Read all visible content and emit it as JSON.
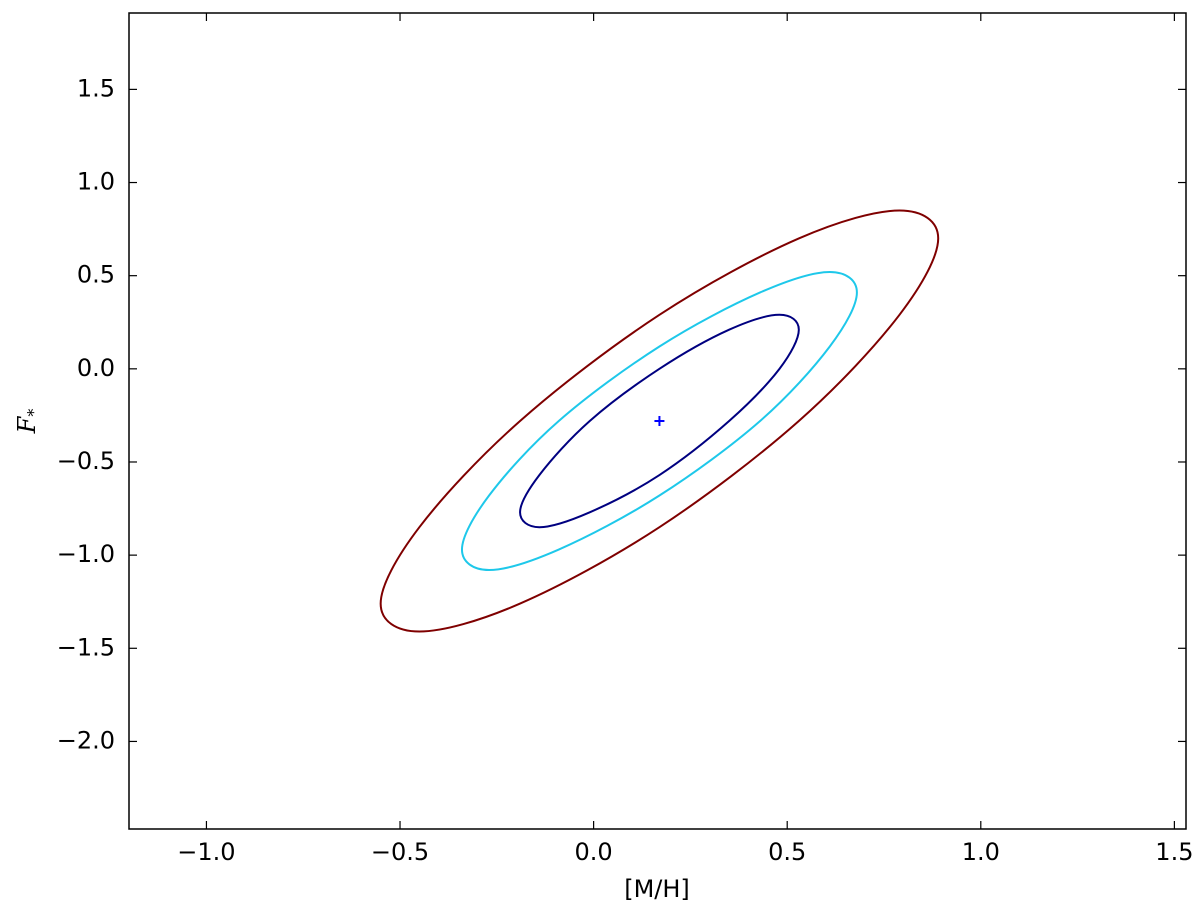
{
  "chart_data": {
    "type": "contour",
    "xlabel": "[M/H]",
    "ylabel": "F",
    "ylabel_subscript": "*",
    "xlim": [
      -1.2,
      1.53
    ],
    "ylim": [
      -2.47,
      1.91
    ],
    "xticks": [
      {
        "value": -1.0,
        "label": "−1.0"
      },
      {
        "value": -0.5,
        "label": "−0.5"
      },
      {
        "value": 0,
        "label": "0.0"
      },
      0.5,
      {
        "value": 1.0,
        "label": "1.0"
      },
      1.5
    ],
    "yticks": [
      1.5,
      {
        "value": 1.0,
        "label": "1.0"
      },
      0.5,
      {
        "value": 0,
        "label": "0.0"
      },
      {
        "value": -0.5,
        "label": "−0.5"
      },
      {
        "value": -1.0,
        "label": "−1.0"
      },
      {
        "value": -1.5,
        "label": "−1.5"
      },
      {
        "value": -2.0,
        "label": "−2.0"
      }
    ],
    "series": [
      {
        "color": "#7f0000",
        "x": [
          0.89,
          0.79,
          0.53,
          0.17,
          -0.19,
          -0.45,
          -0.55,
          -0.45,
          -0.19,
          0.17,
          0.53,
          0.79
        ],
        "y": [
          0.7,
          0.85,
          0.7,
          0.29,
          -0.28,
          -0.85,
          -1.26,
          -1.41,
          -1.26,
          -0.85,
          -0.28,
          0.29
        ]
      },
      {
        "color": "#1ec8ea",
        "x": [
          0.68,
          0.61,
          0.43,
          0.17,
          -0.09,
          -0.27,
          -0.34,
          -0.27,
          -0.09,
          0.17,
          0.43,
          0.61
        ],
        "y": [
          0.41,
          0.52,
          0.41,
          0.12,
          -0.28,
          -0.68,
          -0.97,
          -1.08,
          -0.97,
          -0.68,
          -0.28,
          0.12
        ]
      },
      {
        "color": "#000080",
        "x": [
          0.53,
          0.48,
          0.35,
          0.17,
          -0.01,
          -0.14,
          -0.19,
          -0.14,
          -0.01,
          0.17,
          0.35,
          0.48
        ],
        "y": [
          0.21,
          0.29,
          0.21,
          0.0,
          -0.28,
          -0.57,
          -0.77,
          -0.85,
          -0.77,
          -0.57,
          -0.28,
          0.0
        ]
      }
    ],
    "marker": {
      "x": 0.17,
      "y": -0.28,
      "color": "#0000ff"
    }
  }
}
